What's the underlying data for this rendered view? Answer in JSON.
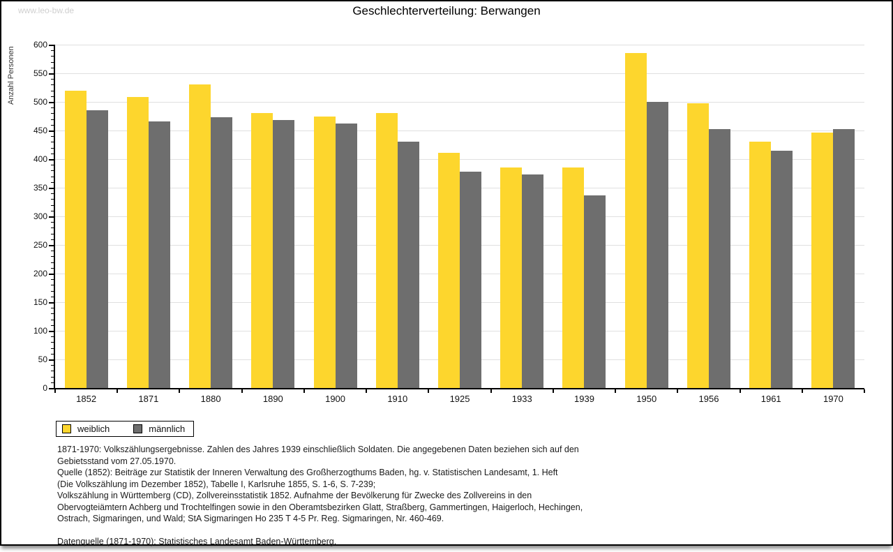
{
  "page": {
    "watermark": "www.leo-bw.de"
  },
  "chart_data": {
    "type": "bar",
    "title": "Geschlechterverteilung: Berwangen",
    "ylabel": "Anzahl Personen",
    "xlabel": "",
    "ylim": [
      0,
      600
    ],
    "ytick_step": 50,
    "yminor_step": 10,
    "grid": true,
    "grid_color": "#e0e0e0",
    "legend_position": "bottom-left",
    "categories": [
      "1852",
      "1871",
      "1880",
      "1890",
      "1900",
      "1910",
      "1925",
      "1933",
      "1939",
      "1950",
      "1956",
      "1961",
      "1970"
    ],
    "series": [
      {
        "name": "weiblich",
        "color": "#fdd62d",
        "values": [
          519,
          509,
          531,
          481,
          474,
          481,
          411,
          386,
          386,
          585,
          498,
          431,
          447
        ]
      },
      {
        "name": "männlich",
        "color": "#6e6e6e",
        "values": [
          485,
          466,
          473,
          468,
          462,
          430,
          378,
          373,
          337,
          500,
          452,
          415,
          452
        ]
      }
    ]
  },
  "footnotes": {
    "lines": [
      "1871-1970: Volkszählungsergebnisse. Zahlen des Jahres 1939 einschließlich Soldaten. Die angegebenen Daten beziehen sich auf den",
      "Gebietsstand vom 27.05.1970.",
      "Quelle (1852): Beiträge zur Statistik der Inneren Verwaltung des Großherzogthums Baden, hg. v. Statistischen Landesamt, 1. Heft",
      "(Die Volkszählung im Dezember 1852), Tabelle I, Karlsruhe 1855, S. 1-6, S. 7-239;",
      "Volkszählung in Württemberg (CD), Zollvereinsstatistik 1852. Aufnahme der Bevölkerung für Zwecke des Zollvereins in den",
      "Obervogteiämtern Achberg und Trochtelfingen sowie in den Oberamtsbezirken Glatt, Straßberg, Gammertingen, Haigerloch, Hechingen,",
      "Ostrach, Sigmaringen, und Wald; StA Sigmaringen Ho 235 T 4-5 Pr. Reg. Sigmaringen, Nr. 460-469."
    ],
    "datasource": "Datenquelle (1871-1970): Statistisches Landesamt Baden-Württemberg."
  }
}
